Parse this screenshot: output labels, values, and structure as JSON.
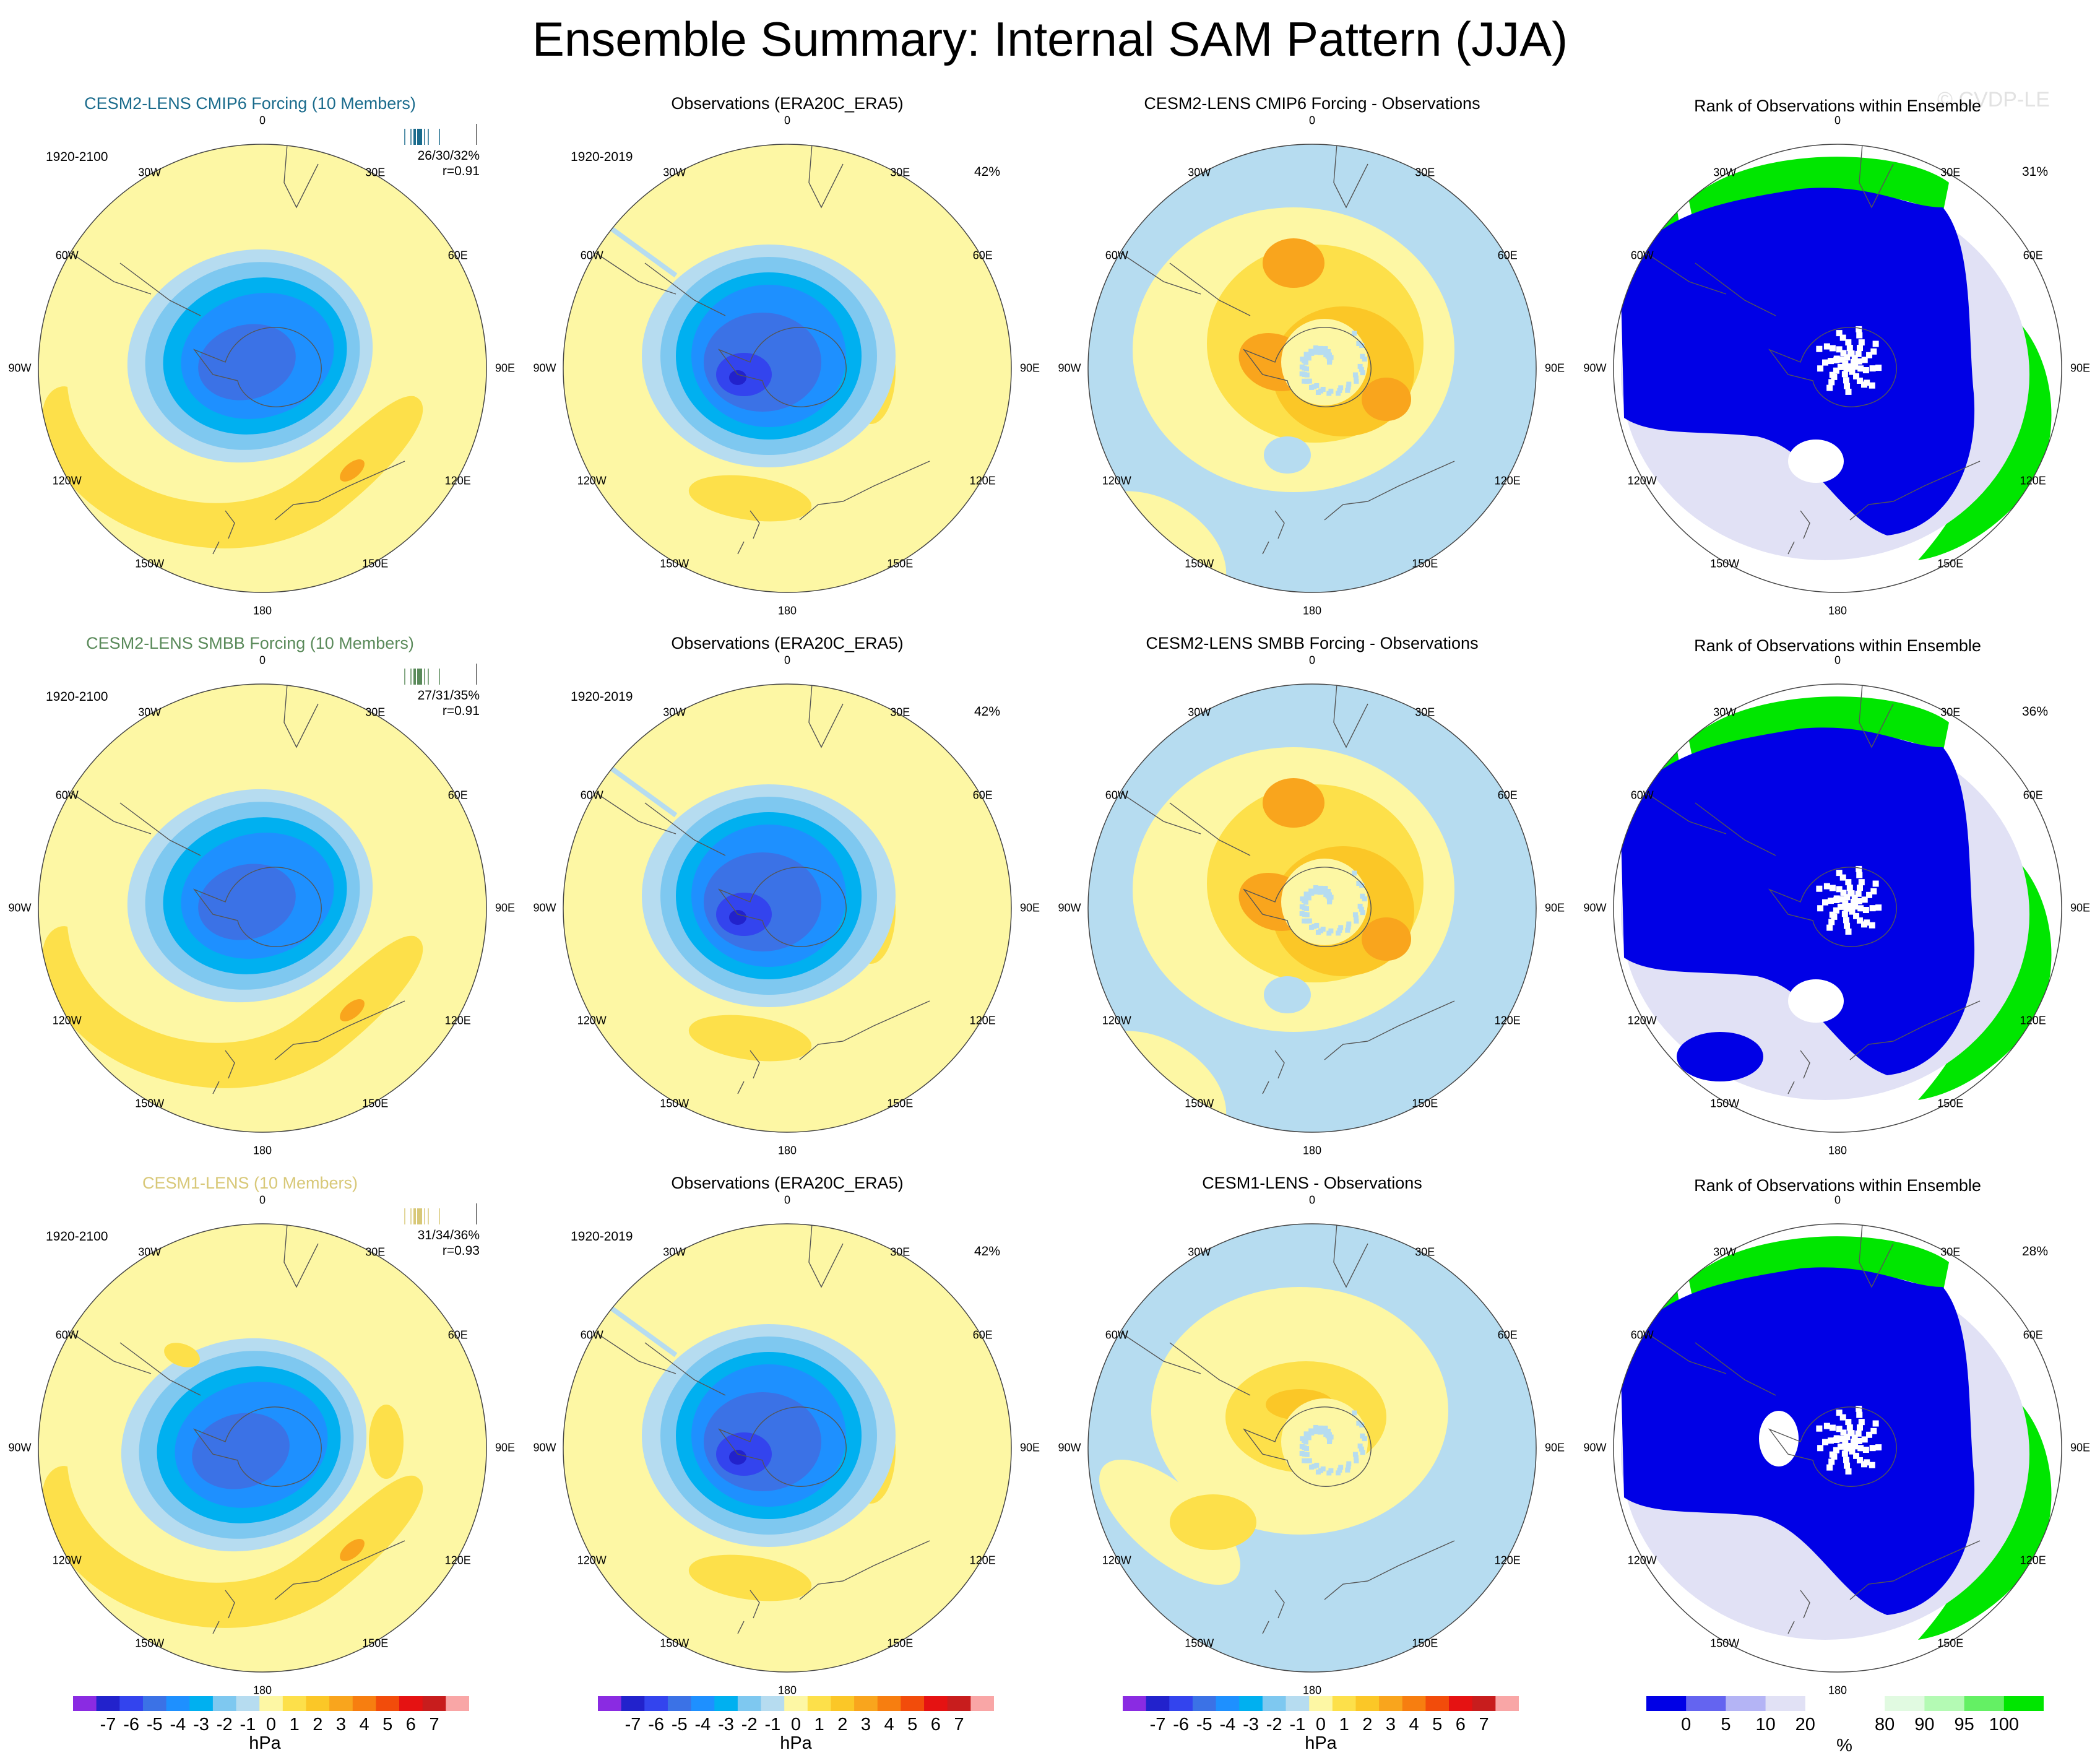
{
  "title": "Ensemble Summary: Internal SAM Pattern (JJA)",
  "watermark": "© CVDP-LE",
  "longitude_labels": [
    "0",
    "30E",
    "60E",
    "90E",
    "120E",
    "150E",
    "180",
    "150W",
    "120W",
    "90W",
    "60W",
    "30W"
  ],
  "colors": {
    "neg7": "#8a2be2",
    "neg6": "#2222cc",
    "neg5": "#3344ee",
    "neg4": "#3b72e6",
    "neg3": "#1e90ff",
    "neg2": "#00b0f0",
    "neg1": "#7ec8f0",
    "neg0": "#b6dcf0",
    "pos0": "#fdf7a4",
    "pos1": "#fde04a",
    "pos2": "#fbc727",
    "pos3": "#f9a51d",
    "pos4": "#f77e10",
    "pos5": "#f24c0b",
    "pos6": "#e51212",
    "pos7": "#c81d1d",
    "pos8": "#f9a6a6",
    "rank0": "#0000e6",
    "rank5": "#6464f0",
    "rank10": "#b4b4f5",
    "rank20": "#e1e1f5",
    "rank50": "#ffffff",
    "rank80": "#e1fae1",
    "rank90": "#b4fab4",
    "rank95": "#64f064",
    "rank100": "#00e600",
    "title_cesm2_cmip6": "#1a6b8c",
    "title_cesm2_smbb": "#5a8a5a",
    "title_cesm1": "#d8c878"
  },
  "rows": [
    {
      "model": {
        "title": "CESM2-LENS CMIP6 Forcing (10 Members)",
        "period": "1920-2100",
        "stat1": "26/30/32%",
        "stat2": "r=0.91"
      },
      "obs": {
        "title": "Observations (ERA20C_ERA5)",
        "period": "1920-2019",
        "pct": "42%"
      },
      "diff": {
        "title": "CESM2-LENS CMIP6 Forcing - Observations"
      },
      "rank": {
        "title": "Rank of Observations within Ensemble",
        "pct": "31%"
      }
    },
    {
      "model": {
        "title": "CESM2-LENS SMBB Forcing (10 Members)",
        "period": "1920-2100",
        "stat1": "27/31/35%",
        "stat2": "r=0.91"
      },
      "obs": {
        "title": "Observations (ERA20C_ERA5)",
        "period": "1920-2019",
        "pct": "42%"
      },
      "diff": {
        "title": "CESM2-LENS SMBB Forcing - Observations"
      },
      "rank": {
        "title": "Rank of Observations within Ensemble",
        "pct": "36%"
      }
    },
    {
      "model": {
        "title": "CESM1-LENS (10 Members)",
        "period": "1920-2100",
        "stat1": "31/34/36%",
        "stat2": "r=0.93"
      },
      "obs": {
        "title": "Observations (ERA20C_ERA5)",
        "period": "1920-2019",
        "pct": "42%"
      },
      "diff": {
        "title": "CESM1-LENS - Observations"
      },
      "rank": {
        "title": "Rank of Observations within Ensemble",
        "pct": "28%"
      }
    }
  ],
  "colorbar_hpa": {
    "labels": [
      "-7",
      "-6",
      "-5",
      "-4",
      "-3",
      "-2",
      "-1",
      "0",
      "1",
      "2",
      "3",
      "4",
      "5",
      "6",
      "7"
    ],
    "unit": "hPa"
  },
  "colorbar_rank": {
    "labels": [
      "0",
      "5",
      "10",
      "20",
      "80",
      "90",
      "95",
      "100"
    ],
    "unit": "%"
  }
}
